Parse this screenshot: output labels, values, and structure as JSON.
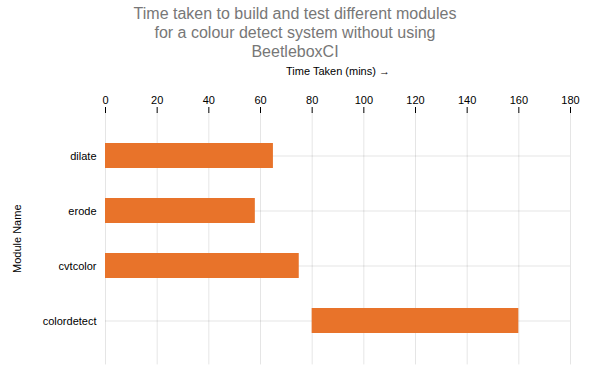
{
  "chart_data": {
    "type": "bar",
    "orientation": "horizontal",
    "title": "Time taken to build and test different modules\nfor a colour detect system without using\nBeetleboxCI",
    "xlabel": "Time Taken (mins)",
    "ylabel": "Module Name",
    "categories": [
      "colordetect",
      "cvtcolor",
      "erode",
      "dilate"
    ],
    "values": [
      160,
      75,
      58,
      65
    ],
    "starts": [
      80,
      0,
      0,
      0
    ],
    "color": "#E8732A",
    "xlim": [
      0,
      180
    ],
    "xticks": [
      0,
      20,
      40,
      60,
      80,
      100,
      120,
      140,
      160,
      180
    ],
    "grid": true
  }
}
